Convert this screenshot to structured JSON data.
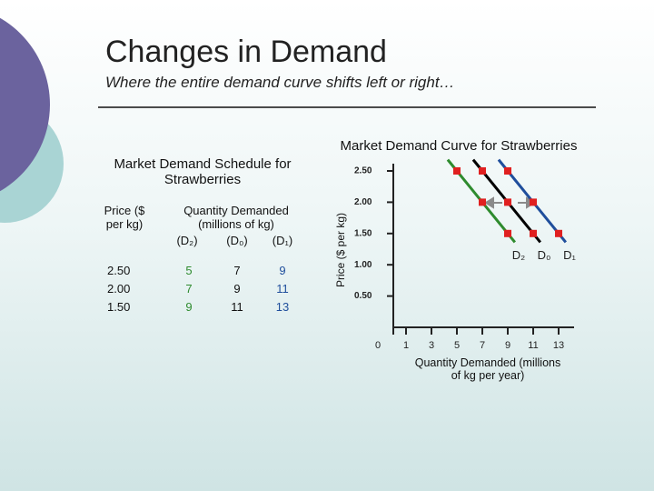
{
  "title": "Changes in Demand",
  "subtitle": "Where the entire demand curve shifts left or right…",
  "table": {
    "title": "Market Demand Schedule for Strawberries",
    "price_header": "Price ($ per kg)",
    "quantity_header": "Quantity Demanded (millions of kg)",
    "curve_headers": [
      "(D₂)",
      "(D₀)",
      "(D₁)"
    ],
    "rows": [
      [
        "2.50",
        "5",
        "7",
        "9"
      ],
      [
        "2.00",
        "7",
        "9",
        "11"
      ],
      [
        "1.50",
        "9",
        "11",
        "13"
      ]
    ]
  },
  "chart_data": {
    "type": "line",
    "title": "Market Demand Curve for Strawberries",
    "x_label": "Quantity Demanded (millions of kg per year)",
    "y_label": "Price ($ per kg)",
    "xlim": [
      0,
      14
    ],
    "ylim": [
      0,
      2.5
    ],
    "xticks": [
      0,
      1,
      3,
      5,
      7,
      9,
      11,
      13
    ],
    "yticks": [
      {
        "value": 0.5,
        "label": "0.50"
      },
      {
        "value": 1,
        "label": "1.00"
      },
      {
        "value": 1.5,
        "label": "1.50"
      },
      {
        "value": 2,
        "label": "2.00"
      },
      {
        "value": 2.5,
        "label": "2.50"
      }
    ],
    "marker_color": "#e02020",
    "series": [
      {
        "name": "D₂",
        "color": "#2e8b2e",
        "x": [
          5,
          7,
          9
        ],
        "values": [
          2.5,
          2,
          1.5
        ]
      },
      {
        "name": "D₀",
        "color": "#000000",
        "x": [
          7,
          9,
          11
        ],
        "values": [
          2.5,
          2,
          1.5
        ]
      },
      {
        "name": "D₁",
        "color": "#1f4e9c",
        "x": [
          9,
          11,
          13
        ],
        "values": [
          2.5,
          2,
          1.5
        ]
      }
    ]
  }
}
